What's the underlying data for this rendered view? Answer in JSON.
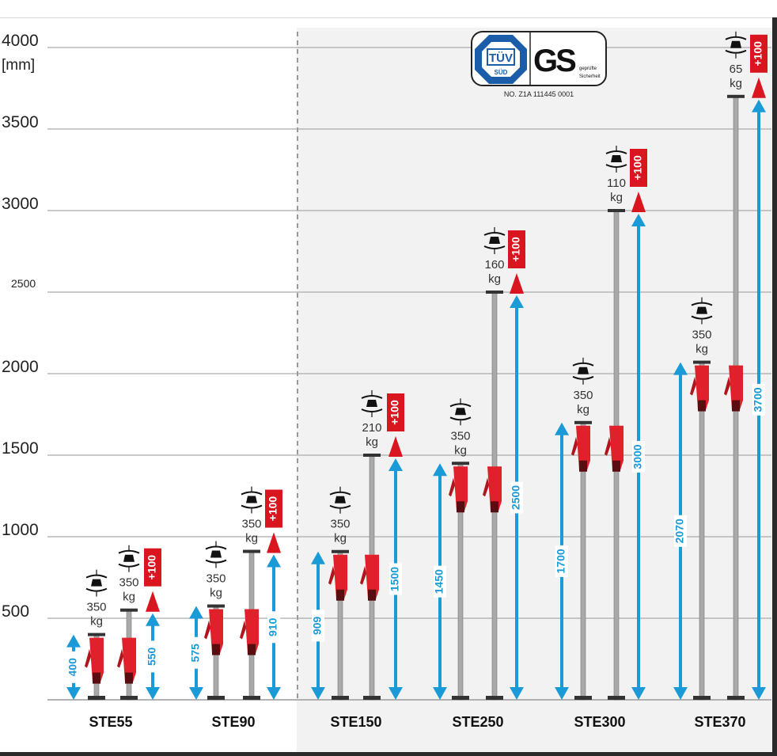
{
  "axis": {
    "unit": "[mm]",
    "ticks": [
      {
        "value": 4000,
        "label": "4000"
      },
      {
        "value": 3500,
        "label": "3500"
      },
      {
        "value": 3000,
        "label": "3000"
      },
      {
        "value": 2500,
        "label": "2500"
      },
      {
        "value": 2000,
        "label": "2000"
      },
      {
        "value": 1500,
        "label": "1500"
      },
      {
        "value": 1000,
        "label": "1000"
      },
      {
        "value": 500,
        "label": "500"
      }
    ]
  },
  "certification": {
    "tuv_text": "TÜV",
    "tuv_sub": "SÜD",
    "gs_text": "GS",
    "gs_sub1": "geprüfte",
    "gs_sub2": "Sicherheit",
    "number": "NO. Z1A 111445 0001"
  },
  "colors": {
    "arrow": "#1a9ad6",
    "extension": "#d9161f",
    "handle": "#e0202a",
    "panel": "#f2f2f2"
  },
  "unit_kg": "kg",
  "extension_label": "+100",
  "products": [
    {
      "name": "STE55",
      "min": 400,
      "max": 550,
      "min_label": "400",
      "max_label": "550",
      "load_min": "350",
      "load_max": "350"
    },
    {
      "name": "STE90",
      "min": 575,
      "max": 910,
      "min_label": "575",
      "max_label": "910",
      "load_min": "350",
      "load_max": "350"
    },
    {
      "name": "STE150",
      "min": 909,
      "max": 1500,
      "min_label": "909",
      "max_label": "1500",
      "load_min": "350",
      "load_max": "210"
    },
    {
      "name": "STE250",
      "min": 1450,
      "max": 2500,
      "min_label": "1450",
      "max_label": "2500",
      "load_min": "350",
      "load_max": "160"
    },
    {
      "name": "STE300",
      "min": 1700,
      "max": 3000,
      "min_label": "1700",
      "max_label": "3000",
      "load_min": "350",
      "load_max": "110"
    },
    {
      "name": "STE370",
      "min": 2070,
      "max": 3700,
      "min_label": "2070",
      "max_label": "3700",
      "load_min": "350",
      "load_max": "65"
    }
  ]
}
